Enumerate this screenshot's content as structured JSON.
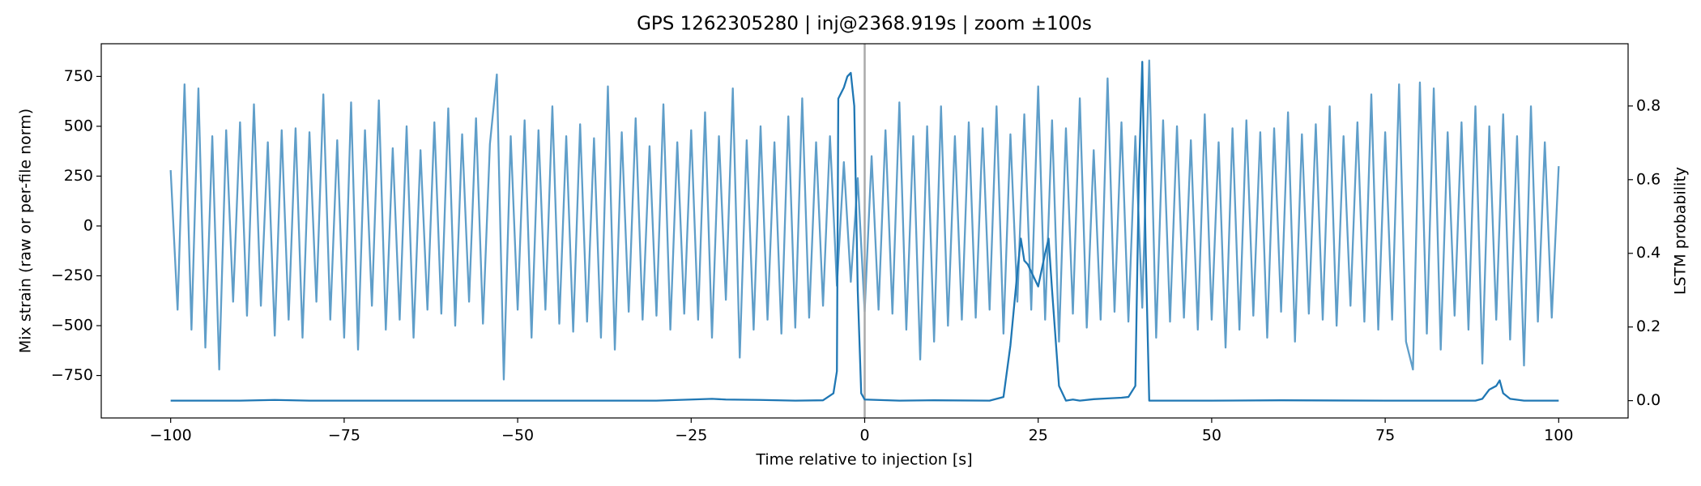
{
  "chart_data": {
    "type": "line",
    "title": "GPS 1262305280 | inj@2368.919s | zoom ±100s",
    "xlabel": "Time relative to injection [s]",
    "ylabel": "Mix strain (raw or per-file norm)",
    "y2label": "LSTM probability",
    "xlim": [
      -110,
      110
    ],
    "ylim": [
      -963,
      914
    ],
    "y2lim": [
      -0.047,
      0.969
    ],
    "xticks": [
      {
        "value": -100,
        "label": "−100"
      },
      {
        "value": -75,
        "label": "−75"
      },
      {
        "value": -50,
        "label": "−50"
      },
      {
        "value": -25,
        "label": "−25"
      },
      0,
      25,
      50,
      75,
      100
    ],
    "yticks": [
      {
        "value": -750,
        "label": "−750"
      },
      {
        "value": -500,
        "label": "−500"
      },
      {
        "value": -250,
        "label": "−250"
      },
      0,
      250,
      500,
      750
    ],
    "y2ticks": [
      {
        "value": 0,
        "label": "0.0"
      },
      0.2,
      0.4,
      0.6,
      0.8
    ],
    "grid": false,
    "vlines": [
      0
    ],
    "vline_color": "#aaaaaa",
    "series": [
      {
        "color": "#5f9ec9",
        "axis": "y",
        "x": [
          -100,
          -99,
          -98,
          -97,
          -96,
          -95,
          -94,
          -93,
          -92,
          -91,
          -90,
          -89,
          -88,
          -87,
          -86,
          -85,
          -84,
          -83,
          -82,
          -81,
          -80,
          -79,
          -78,
          -77,
          -76,
          -75,
          -74,
          -73,
          -72,
          -71,
          -70,
          -69,
          -68,
          -67,
          -66,
          -65,
          -64,
          -63,
          -62,
          -61,
          -60,
          -59,
          -58,
          -57,
          -56,
          -55,
          -54,
          -53,
          -52,
          -51,
          -50,
          -49,
          -48,
          -47,
          -46,
          -45,
          -44,
          -43,
          -42,
          -41,
          -40,
          -39,
          -38,
          -37,
          -36,
          -35,
          -34,
          -33,
          -32,
          -31,
          -30,
          -29,
          -28,
          -27,
          -26,
          -25,
          -24,
          -23,
          -22,
          -21,
          -20,
          -19,
          -18,
          -17,
          -16,
          -15,
          -14,
          -13,
          -12,
          -11,
          -10,
          -9,
          -8,
          -7,
          -6,
          -5,
          -4,
          -3,
          -2,
          -1,
          0,
          1,
          2,
          3,
          4,
          5,
          6,
          7,
          8,
          9,
          10,
          11,
          12,
          13,
          14,
          15,
          16,
          17,
          18,
          19,
          20,
          21,
          22,
          23,
          24,
          25,
          26,
          27,
          28,
          29,
          30,
          31,
          32,
          33,
          34,
          35,
          36,
          37,
          38,
          39,
          40,
          41,
          42,
          43,
          44,
          45,
          46,
          47,
          48,
          49,
          50,
          51,
          52,
          53,
          54,
          55,
          56,
          57,
          58,
          59,
          60,
          61,
          62,
          63,
          64,
          65,
          66,
          67,
          68,
          69,
          70,
          71,
          72,
          73,
          74,
          75,
          76,
          77,
          78,
          79,
          80,
          81,
          82,
          83,
          84,
          85,
          86,
          87,
          88,
          89,
          90,
          91,
          92,
          93,
          94,
          95,
          96,
          97,
          98,
          99,
          100
        ],
        "values": [
          280,
          -420,
          710,
          -520,
          690,
          -610,
          450,
          -720,
          480,
          -380,
          520,
          -450,
          610,
          -400,
          420,
          -550,
          480,
          -470,
          490,
          -560,
          470,
          -380,
          660,
          -470,
          430,
          -560,
          620,
          -620,
          480,
          -400,
          630,
          -520,
          390,
          -470,
          500,
          -560,
          380,
          -420,
          520,
          -440,
          590,
          -500,
          460,
          -380,
          540,
          -490,
          410,
          760,
          -770,
          450,
          -420,
          530,
          -560,
          480,
          -420,
          600,
          -490,
          450,
          -530,
          510,
          -480,
          440,
          -560,
          700,
          -620,
          470,
          -430,
          540,
          -470,
          400,
          -450,
          610,
          -520,
          420,
          -440,
          480,
          -470,
          570,
          -560,
          450,
          -370,
          690,
          -660,
          430,
          -520,
          500,
          -470,
          420,
          -540,
          550,
          -510,
          640,
          -460,
          420,
          -400,
          450,
          -300,
          320,
          -280,
          240,
          -430,
          350,
          -420,
          480,
          -440,
          620,
          -520,
          450,
          -670,
          500,
          -580,
          600,
          -500,
          450,
          -470,
          520,
          -460,
          490,
          -420,
          600,
          -540,
          460,
          -380,
          560,
          -420,
          700,
          -470,
          530,
          -580,
          490,
          -440,
          640,
          -510,
          380,
          -470,
          740,
          -430,
          520,
          -480,
          450,
          -410,
          830,
          -560,
          530,
          -480,
          500,
          -460,
          430,
          -520,
          560,
          -470,
          420,
          -610,
          490,
          -520,
          530,
          -450,
          470,
          -560,
          490,
          -430,
          570,
          -580,
          460,
          -440,
          510,
          -470,
          600,
          -500,
          450,
          -400,
          520,
          -480,
          660,
          -520,
          470,
          -470,
          710,
          -580,
          -720,
          720,
          -540,
          690,
          -620,
          470,
          -450,
          520,
          -520,
          600,
          -690,
          500,
          -470,
          560,
          -570,
          450,
          -700,
          600,
          -480,
          420,
          -460,
          300
        ]
      },
      {
        "color": "#1f77b4",
        "axis": "y2",
        "x": [
          -100,
          -90,
          -85,
          -80,
          -30,
          -25,
          -22,
          -20,
          -15,
          -10,
          -6,
          -4.5,
          -4,
          -3.8,
          -3,
          -2.5,
          -2,
          -1.5,
          -1,
          -0.5,
          0,
          5,
          10,
          18,
          20,
          21,
          22,
          22.5,
          23,
          23.5,
          24,
          25,
          26,
          26.5,
          27,
          28,
          29,
          30,
          31,
          33,
          35,
          37,
          38,
          39,
          39.5,
          40,
          40.5,
          41,
          50,
          60,
          75,
          88,
          89,
          90,
          91,
          91.5,
          92,
          93,
          95,
          100
        ],
        "values": [
          0,
          0,
          0.002,
          0,
          0,
          0.003,
          0.005,
          0.003,
          0.002,
          0,
          0.001,
          0.02,
          0.08,
          0.82,
          0.85,
          0.88,
          0.89,
          0.8,
          0.3,
          0.02,
          0.003,
          0,
          0.001,
          0,
          0.01,
          0.15,
          0.35,
          0.44,
          0.38,
          0.37,
          0.35,
          0.31,
          0.4,
          0.44,
          0.3,
          0.04,
          0,
          0.003,
          0,
          0.004,
          0.006,
          0.008,
          0.01,
          0.04,
          0.6,
          0.92,
          0.4,
          0,
          0,
          0.001,
          0,
          0,
          0.005,
          0.03,
          0.04,
          0.055,
          0.02,
          0.005,
          0,
          0
        ]
      }
    ]
  }
}
